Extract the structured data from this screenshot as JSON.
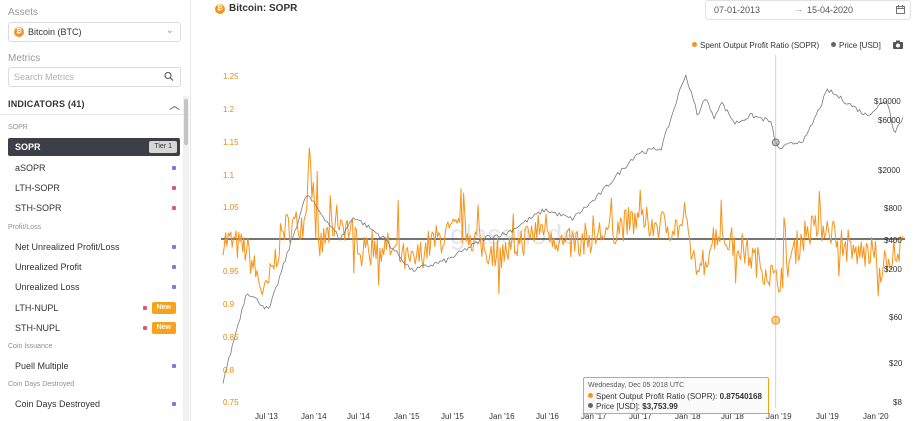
{
  "sidebar": {
    "assets_title": "Assets",
    "asset": {
      "label": "Bitcoin (BTC)",
      "icon": "bitcoin-icon"
    },
    "metrics_title": "Metrics",
    "search_placeholder": "Search Metrics",
    "indicators_label": "INDICATORS (41)",
    "groups": [
      {
        "title": "SOPR",
        "items": [
          {
            "name": "SOPR",
            "active": true,
            "tier": "Tier 1"
          },
          {
            "name": "aSOPR",
            "dot": "#7b7bd9"
          },
          {
            "name": "LTH-SOPR",
            "dot": "#e05b6f"
          },
          {
            "name": "STH-SOPR",
            "dot": "#e05b6f"
          }
        ]
      },
      {
        "title": "Profit/Loss",
        "items": [
          {
            "name": "Net Unrealized Profit/Loss",
            "dot": "#7b7bd9"
          },
          {
            "name": "Unrealized Profit",
            "dot": "#7b7bd9"
          },
          {
            "name": "Unrealized Loss",
            "dot": "#7b7bd9"
          },
          {
            "name": "LTH-NUPL",
            "dot": "#e05b6f",
            "badge": "New"
          },
          {
            "name": "STH-NUPL",
            "dot": "#e05b6f",
            "badge": "New"
          }
        ]
      },
      {
        "title": "Coin Issuance",
        "items": [
          {
            "name": "Puell Multiple",
            "dot": "#7b7bd9"
          }
        ]
      },
      {
        "title": "Coin Days Destroyed",
        "items": [
          {
            "name": "Coin Days Destroyed",
            "dot": "#7b7bd9"
          }
        ]
      }
    ]
  },
  "main": {
    "title": "Bitcoin: SOPR",
    "date_from": "07-01-2013",
    "date_arrow": "→",
    "date_to": "15-04-2020",
    "watermark": "glassnode"
  },
  "colors": {
    "sopr": "#f7931a",
    "price": "#7a7a7a",
    "accent": "#f7a21b"
  },
  "chart_data": {
    "type": "line",
    "legend_position": "top-right",
    "series": [
      {
        "name": "Spent Output Profit Ratio (SOPR)",
        "axis": "left",
        "color": "#f7931a",
        "points": [
          [
            "2013-01-07",
            1.0
          ],
          [
            "2013-04-10",
            0.97
          ],
          [
            "2013-06-20",
            0.84
          ],
          [
            "2013-09-01",
            1.03
          ],
          [
            "2013-11-25",
            1.05
          ],
          [
            "2013-12-10",
            1.23
          ],
          [
            "2014-01-15",
            0.97
          ],
          [
            "2014-04-01",
            1.06
          ],
          [
            "2014-07-01",
            0.99
          ],
          [
            "2014-10-01",
            0.98
          ],
          [
            "2015-01-15",
            0.93
          ],
          [
            "2015-04-01",
            0.99
          ],
          [
            "2015-08-01",
            1.03
          ],
          [
            "2015-11-01",
            0.97
          ],
          [
            "2016-01-15",
            0.96
          ],
          [
            "2016-06-15",
            1.04
          ],
          [
            "2016-09-01",
            0.98
          ],
          [
            "2017-01-01",
            1.01
          ],
          [
            "2017-06-01",
            1.05
          ],
          [
            "2017-12-17",
            1.03
          ],
          [
            "2018-02-06",
            0.9
          ],
          [
            "2018-04-15",
            1.02
          ],
          [
            "2018-08-01",
            0.97
          ],
          [
            "2018-11-20",
            0.9
          ],
          [
            "2018-12-05",
            0.8754
          ],
          [
            "2019-04-01",
            1.02
          ],
          [
            "2019-06-26",
            1.04
          ],
          [
            "2019-09-25",
            0.96
          ],
          [
            "2019-12-15",
            0.96
          ],
          [
            "2020-03-12",
            0.91
          ],
          [
            "2020-04-15",
            0.99
          ]
        ]
      },
      {
        "name": "Price [USD]",
        "axis": "right",
        "scale": "log",
        "color": "#7a7a7a",
        "points": [
          [
            "2013-01-07",
            13
          ],
          [
            "2013-04-10",
            110
          ],
          [
            "2013-07-05",
            70
          ],
          [
            "2013-11-30",
            1100
          ],
          [
            "2014-04-10",
            380
          ],
          [
            "2014-06-01",
            650
          ],
          [
            "2014-10-01",
            380
          ],
          [
            "2015-01-14",
            180
          ],
          [
            "2015-06-01",
            230
          ],
          [
            "2015-11-05",
            400
          ],
          [
            "2016-01-15",
            430
          ],
          [
            "2016-06-16",
            760
          ],
          [
            "2016-10-01",
            610
          ],
          [
            "2017-01-01",
            990
          ],
          [
            "2017-06-12",
            2900
          ],
          [
            "2017-09-15",
            3300
          ],
          [
            "2017-12-17",
            19000
          ],
          [
            "2018-02-06",
            6900
          ],
          [
            "2018-03-05",
            11400
          ],
          [
            "2018-04-06",
            6600
          ],
          [
            "2018-05-05",
            9800
          ],
          [
            "2018-06-29",
            5900
          ],
          [
            "2018-09-01",
            7100
          ],
          [
            "2018-11-14",
            6200
          ],
          [
            "2018-12-05",
            3753.99
          ],
          [
            "2018-12-15",
            3200
          ],
          [
            "2019-04-01",
            4100
          ],
          [
            "2019-06-26",
            13000
          ],
          [
            "2019-09-01",
            10000
          ],
          [
            "2019-11-25",
            7100
          ],
          [
            "2020-02-12",
            10300
          ],
          [
            "2020-03-12",
            4800
          ],
          [
            "2020-04-15",
            6700
          ]
        ]
      }
    ],
    "reference_line": 1.0,
    "y_left": {
      "range": [
        0.75,
        1.25
      ],
      "ticks": [
        "0.75",
        "0.8",
        "0.85",
        "0.9",
        "0.95",
        "1",
        "1.05",
        "1.1",
        "1.15",
        "1.2",
        "1.25"
      ]
    },
    "y_right": {
      "scale": "log",
      "ticks": [
        "$8",
        "$20",
        "$60",
        "$200",
        "$400",
        "$800",
        "$2000",
        "$6000",
        "$10000"
      ]
    },
    "x_ticks": [
      "Jul '13",
      "Jan '14",
      "Jul '14",
      "Jan '15",
      "Jul '15",
      "Jan '16",
      "Jul '16",
      "Jan '17",
      "Jul '17",
      "Jan '18",
      "Jul '18",
      "Jan '19",
      "Jul '19",
      "Jan '20"
    ],
    "grid": false,
    "tooltip": {
      "date": "Wednesday, Dec 05 2018 UTC",
      "sopr_label": "Spent Output Profit Ratio (SOPR):",
      "sopr_value": "0.87540168",
      "price_label": "Price [USD]:",
      "price_value": "$3,753.99"
    }
  }
}
